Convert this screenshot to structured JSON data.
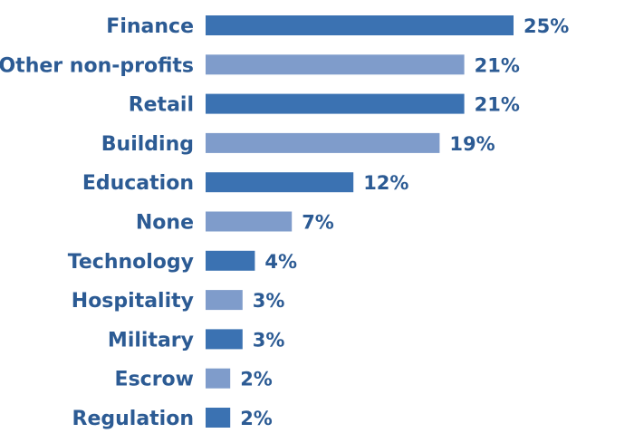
{
  "chart_data": {
    "type": "bar",
    "orientation": "horizontal",
    "categories": [
      "Finance",
      "Other non-profits",
      "Retail",
      "Building",
      "Education",
      "None",
      "Technology",
      "Hospitality",
      "Military",
      "Escrow",
      "Regulation"
    ],
    "values": [
      25,
      21,
      21,
      19,
      12,
      7,
      4,
      3,
      3,
      2,
      2
    ],
    "value_labels": [
      "25%",
      "21%",
      "21%",
      "19%",
      "12%",
      "7%",
      "4%",
      "3%",
      "3%",
      "2%",
      "2%"
    ],
    "unit": "%",
    "xlim": [
      -0.5,
      26
    ],
    "grid": false,
    "legend": "none",
    "title": "",
    "xlabel": "",
    "ylabel": ""
  },
  "colors": {
    "bar_dark": "#3b72b2",
    "bar_light": "#7f9ccb",
    "text": "#2c5b94"
  }
}
